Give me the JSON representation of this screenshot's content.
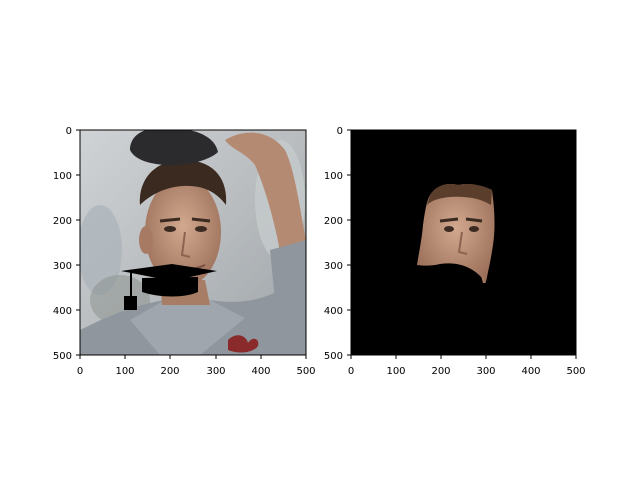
{
  "figure": {
    "panels": [
      {
        "id": "left",
        "content": "photo of a baseball player in a grey jersey holding his cap above his head, with a black graduation mortarboard cap drawn over the lower face",
        "x_ticks": [
          "0",
          "100",
          "200",
          "300",
          "400",
          "500"
        ],
        "y_ticks": [
          "0",
          "100",
          "200",
          "300",
          "400",
          "500"
        ]
      },
      {
        "id": "right",
        "content": "segmentation result: only the face region of the same person visible on a black background",
        "x_ticks": [
          "0",
          "100",
          "200",
          "300",
          "400",
          "500"
        ],
        "y_ticks": [
          "0",
          "100",
          "200",
          "300",
          "400",
          "500"
        ]
      }
    ]
  }
}
